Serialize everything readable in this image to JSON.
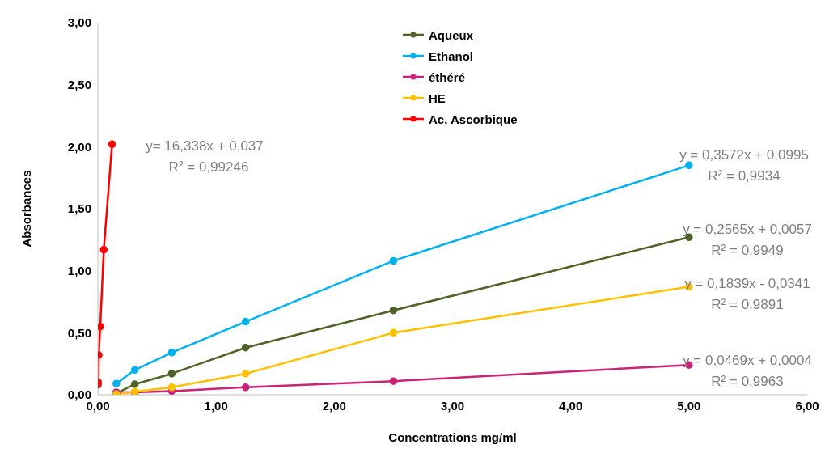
{
  "chart_data": {
    "type": "line",
    "xlabel": "Concentrations mg/ml",
    "ylabel": "Absorbances",
    "xlim": [
      0,
      6
    ],
    "xticks": [
      {
        "value": 0,
        "label": "0,00"
      },
      {
        "value": 1,
        "label": "1,00"
      },
      {
        "value": 2,
        "label": "2,00"
      },
      {
        "value": 3,
        "label": "3,00"
      },
      {
        "value": 4,
        "label": "4,00"
      },
      {
        "value": 5,
        "label": "5,00"
      },
      {
        "value": 6,
        "label": "6,00"
      }
    ],
    "ylim": [
      0,
      3
    ],
    "yticks": [
      {
        "value": 0,
        "label": "0,00"
      },
      {
        "value": 0.5,
        "label": "0,50"
      },
      {
        "value": 1,
        "label": "1,00"
      },
      {
        "value": 1.5,
        "label": "1,50"
      },
      {
        "value": 2,
        "label": "2,00"
      },
      {
        "value": 2.5,
        "label": "2,50"
      },
      {
        "value": 3,
        "label": "3,00"
      }
    ],
    "grid": false,
    "legend": "top",
    "marker": "circle",
    "line_style": "solid",
    "series": [
      {
        "name": "Aqueux",
        "color": "#4f6228",
        "x": [
          0.156,
          0.3125,
          0.625,
          1.25,
          2.5,
          5
        ],
        "values": [
          0.01,
          0.085,
          0.17,
          0.38,
          0.68,
          1.27
        ]
      },
      {
        "name": "Ethanol",
        "color": "#00b0f0",
        "x": [
          0.156,
          0.3125,
          0.625,
          1.25,
          2.5,
          5
        ],
        "values": [
          0.09,
          0.2,
          0.34,
          0.59,
          1.08,
          1.85
        ]
      },
      {
        "name": "éthéré",
        "color": "#cc2277",
        "x": [
          0.156,
          0.3125,
          0.625,
          1.25,
          2.5,
          5
        ],
        "values": [
          0.02,
          0.02,
          0.03,
          0.06,
          0.11,
          0.24
        ]
      },
      {
        "name": "HE",
        "color": "#ffc000",
        "x": [
          0.156,
          0.3125,
          0.625,
          1.25,
          2.5,
          5
        ],
        "values": [
          0.005,
          0.025,
          0.06,
          0.17,
          0.5,
          0.87
        ]
      },
      {
        "name": "Ac. Ascorbique",
        "color": "#ff0000",
        "x": [
          0,
          0.002,
          0.007,
          0.02,
          0.05,
          0.12
        ],
        "values": [
          0.08,
          0.1,
          0.32,
          0.55,
          1.17,
          2.02
        ]
      }
    ],
    "annotations": [
      "y= 16,338x + 0,037",
      "R² = 0,99246",
      "y = 0,3572x + 0,0995",
      "R² = 0,9934",
      "y = 0,2565x + 0,0057",
      "R² = 0,9949",
      "y = 0,1839x - 0,0341",
      "R² = 0,9891",
      "y = 0,0469x + 0,0004",
      "R² = 0,9963"
    ]
  }
}
